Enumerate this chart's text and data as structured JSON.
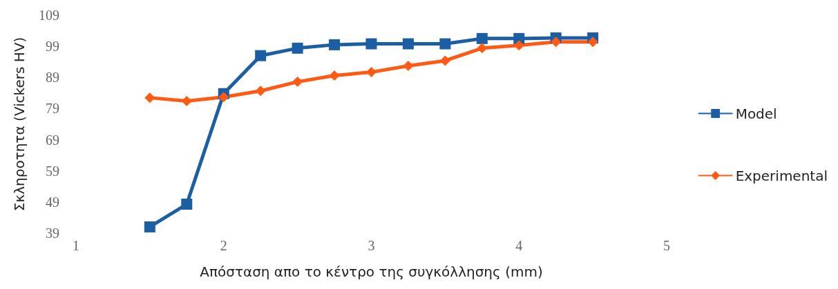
{
  "chart_data": {
    "type": "line",
    "xlabel": "Απόσταση απο το κέντρο της συγκόλλησης (mm)",
    "ylabel": "Σκληροτητα (Vickers HV)",
    "x": [
      1.5,
      1.75,
      2,
      2.25,
      2.5,
      2.75,
      3,
      3.25,
      3.5,
      3.75,
      4,
      4.25,
      4.5
    ],
    "series": [
      {
        "name": "Model",
        "color": "#1c5ea3",
        "marker": "square",
        "values": [
          41,
          48.3,
          83.8,
          96,
          98.4,
          99.5,
          99.8,
          99.8,
          99.8,
          101.5,
          101.5,
          101.7,
          101.7
        ]
      },
      {
        "name": "Experimental",
        "color": "#ff5a14",
        "marker": "diamond",
        "values": [
          82.5,
          81.4,
          82.7,
          84.7,
          87.6,
          89.6,
          90.7,
          92.7,
          94.4,
          98.4,
          99.3,
          100.4,
          100.4
        ]
      }
    ],
    "xlim": [
      1,
      5
    ],
    "xticks": [
      1,
      2,
      3,
      4,
      5
    ],
    "ylim": [
      39,
      109
    ],
    "yticks": [
      39,
      49,
      59,
      69,
      79,
      89,
      99,
      109
    ],
    "grid": false,
    "legend": "right",
    "line_style": "solid"
  }
}
